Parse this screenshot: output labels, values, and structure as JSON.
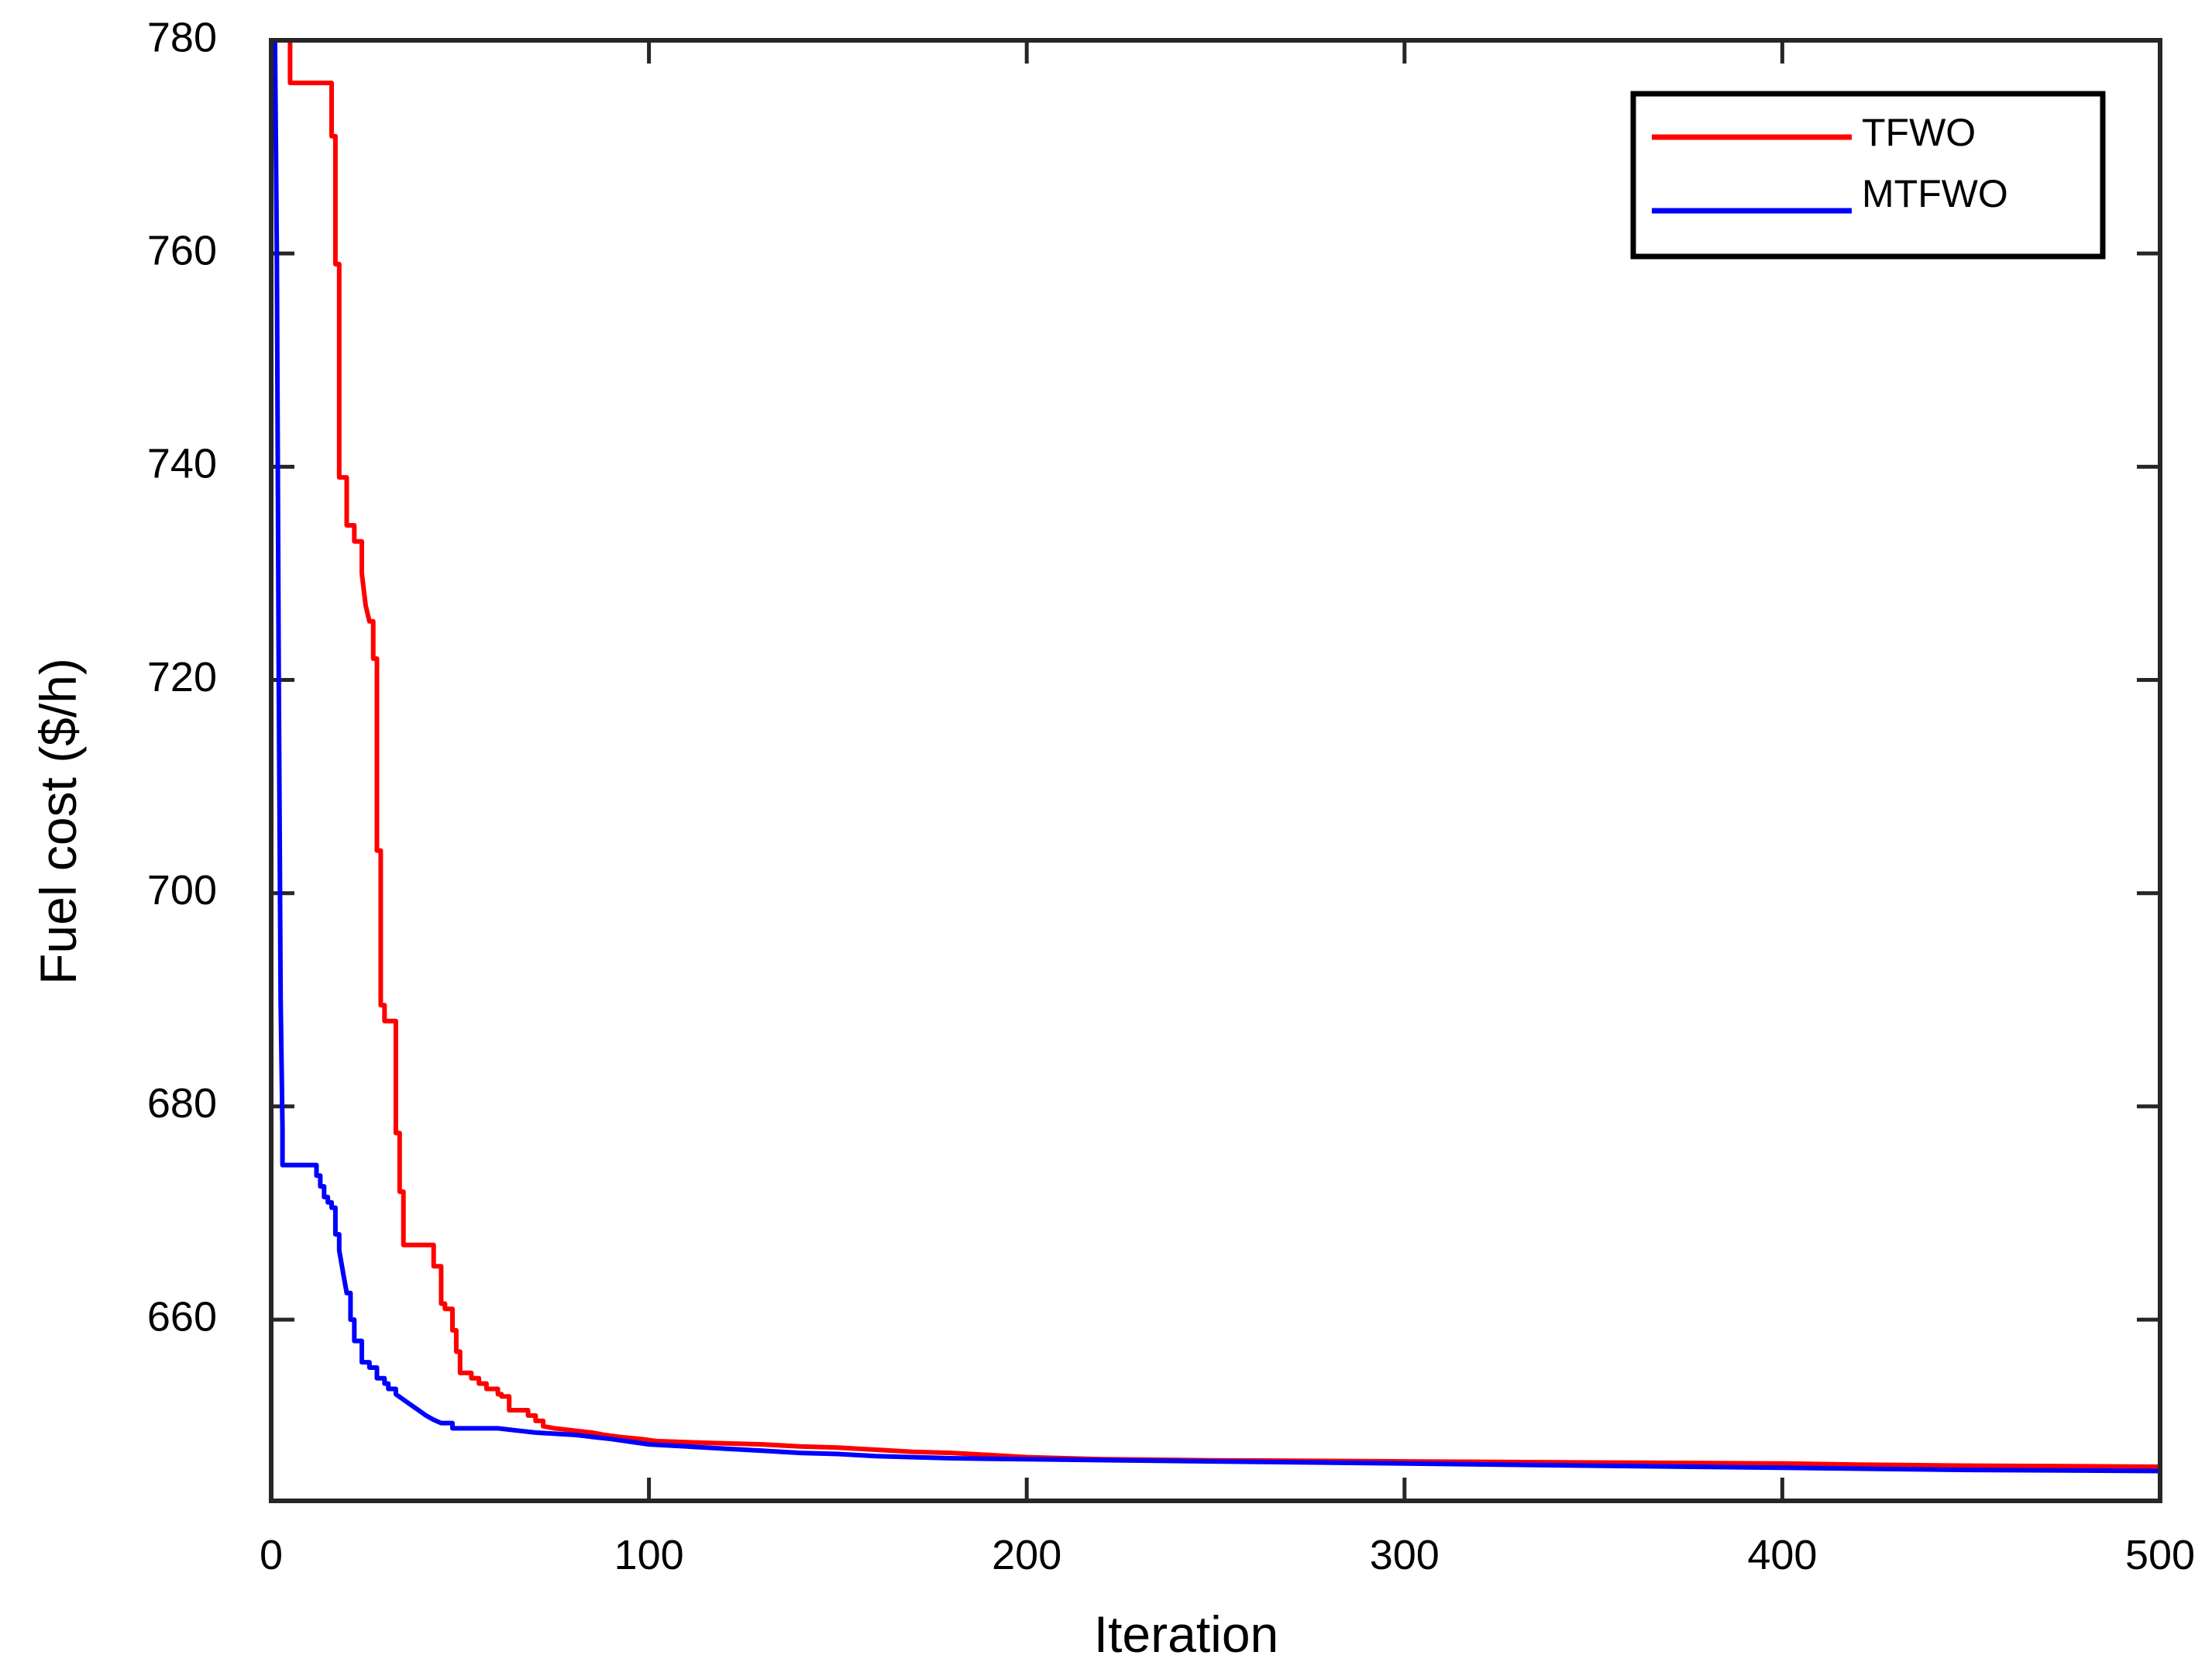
{
  "chart_data": {
    "type": "line",
    "title": "",
    "xlabel": "Iteration",
    "ylabel": "Fuel cost ($/h)",
    "xlim": [
      0,
      500
    ],
    "ylim": [
      643,
      780
    ],
    "xticks": [
      0,
      100,
      200,
      300,
      400,
      500
    ],
    "yticks": [
      660,
      680,
      700,
      720,
      740,
      760,
      780
    ],
    "grid": false,
    "legend_position": "top-right",
    "series": [
      {
        "name": "TFWO",
        "color": "#ff0000",
        "x": [
          4,
          5,
          5,
          15,
          16,
          16,
          17,
          17,
          18,
          18,
          20,
          20,
          22,
          22,
          24,
          24,
          25,
          26,
          27,
          27,
          28,
          28,
          29,
          29,
          30,
          30,
          33,
          33,
          34,
          34,
          35,
          35,
          36,
          36,
          43,
          43,
          45,
          45,
          46,
          46,
          48,
          48,
          49,
          49,
          50,
          50,
          53,
          53,
          55,
          55,
          57,
          57,
          60,
          60,
          61,
          61,
          63,
          63,
          68,
          68,
          70,
          70,
          72,
          72,
          75,
          80,
          85,
          88,
          92,
          95,
          98,
          100,
          102,
          110,
          120,
          130,
          140,
          150,
          160,
          170,
          180,
          190,
          200,
          220,
          250,
          300,
          350,
          400,
          420,
          450,
          500
        ],
        "y": [
          780,
          780,
          776,
          776,
          776,
          771,
          771,
          759,
          759,
          739,
          739,
          734.5,
          734.5,
          733,
          733,
          730,
          727,
          725.5,
          725.5,
          722,
          722,
          704,
          704,
          689.5,
          689.5,
          688,
          688,
          677.5,
          677.5,
          672,
          672,
          667,
          667,
          667,
          667,
          665,
          665,
          661.5,
          661.5,
          661,
          661,
          659,
          659,
          657,
          657,
          655,
          655,
          654.5,
          654.5,
          654,
          654,
          653.5,
          653.5,
          653,
          653,
          652.8,
          652.8,
          651.5,
          651.5,
          651,
          651,
          650.5,
          650.5,
          650,
          649.8,
          649.6,
          649.4,
          649.2,
          649,
          648.9,
          648.8,
          648.7,
          648.6,
          648.5,
          648.4,
          648.3,
          648.1,
          648,
          647.8,
          647.6,
          647.5,
          647.3,
          647.1,
          646.9,
          646.8,
          646.7,
          646.6,
          646.5,
          646.4,
          646.3,
          646.2
        ]
      },
      {
        "name": "MTFWO",
        "color": "#0000ff",
        "x": [
          1,
          1.5,
          2,
          2.5,
          3,
          3,
          12,
          12,
          13,
          13,
          14,
          14,
          15,
          15,
          16,
          16,
          17,
          17,
          18,
          18,
          19,
          20,
          21,
          21,
          22,
          22,
          24,
          24,
          26,
          26,
          28,
          28,
          30,
          30,
          31,
          31,
          33,
          33,
          35,
          37,
          39,
          41,
          43,
          45,
          48,
          48,
          60,
          65,
          70,
          80,
          90,
          100,
          110,
          120,
          130,
          140,
          150,
          160,
          180,
          200,
          250,
          300,
          350,
          400,
          450,
          500
        ],
        "y": [
          780,
          760,
          720,
          690,
          678,
          674.5,
          674.5,
          673.5,
          673.5,
          672.5,
          672.5,
          671.5,
          671.5,
          671,
          671,
          670.5,
          670.5,
          668,
          668,
          666.5,
          664.5,
          662.5,
          662.5,
          660,
          660,
          658,
          658,
          656,
          656,
          655.5,
          655.5,
          654.5,
          654.5,
          654,
          654,
          653.5,
          653.5,
          653,
          652.5,
          652,
          651.5,
          651,
          650.6,
          650.3,
          650.3,
          649.8,
          649.8,
          649.6,
          649.4,
          649.2,
          648.8,
          648.3,
          648.1,
          647.9,
          647.7,
          647.5,
          647.4,
          647.2,
          647,
          646.9,
          646.7,
          646.5,
          646.3,
          646.1,
          645.9,
          645.8
        ]
      }
    ]
  }
}
